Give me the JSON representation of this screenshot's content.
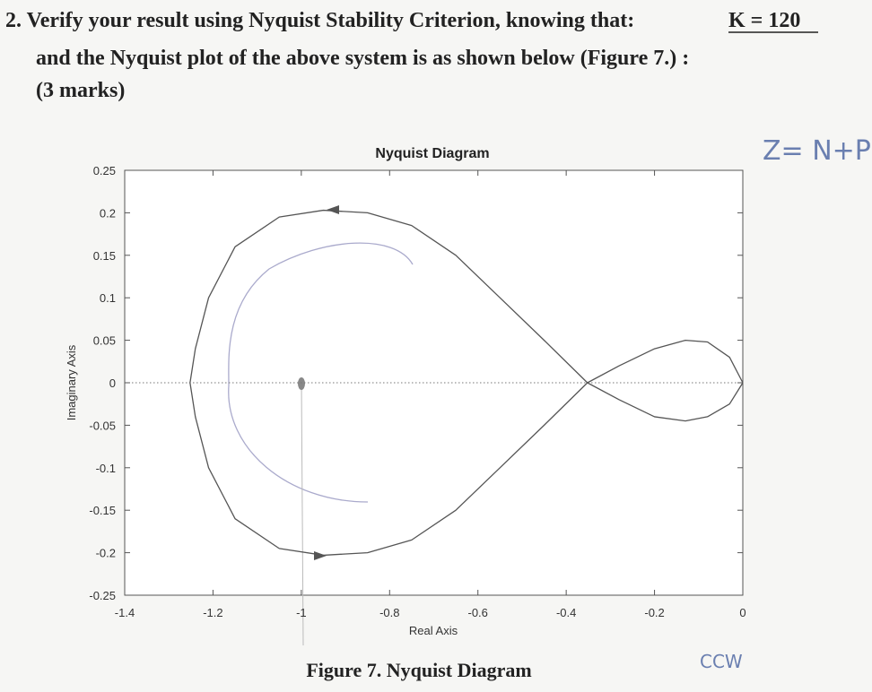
{
  "question": {
    "line1": "2. Verify your result using Nyquist Stability Criterion, knowing that:",
    "k": "K = 120",
    "line2": "and the Nyquist plot of the above system is as shown below (Figure 7.) :",
    "line3": "(3 marks)"
  },
  "notes": {
    "formula": "Z= N+P",
    "direction": "CCW"
  },
  "chart_data": {
    "type": "line",
    "title": "Nyquist Diagram",
    "xlabel": "Real Axis",
    "ylabel": "Imaginary Axis",
    "x": [
      0,
      -0.03,
      -0.08,
      -0.13,
      -0.2,
      -0.28,
      -0.352,
      -0.45,
      -0.55,
      -0.65,
      -0.75,
      -0.85,
      -0.95,
      -1.05,
      -1.15,
      -1.21,
      -1.24,
      -1.252,
      -1.24,
      -1.21,
      -1.15,
      -1.05,
      -0.95,
      -0.85,
      -0.75,
      -0.65,
      -0.55,
      -0.45,
      -0.352,
      -0.28,
      -0.2,
      -0.13,
      -0.08,
      -0.03,
      0
    ],
    "series": [
      {
        "color": "#555555",
        "values": [
          0,
          0.03,
          0.048,
          0.05,
          0.04,
          0.02,
          0,
          0.05,
          0.1,
          0.15,
          0.185,
          0.2,
          0.203,
          0.195,
          0.16,
          0.1,
          0.04,
          0,
          -0.04,
          -0.1,
          -0.16,
          -0.195,
          -0.203,
          -0.2,
          -0.185,
          -0.15,
          -0.1,
          -0.05,
          0,
          -0.02,
          -0.04,
          -0.045,
          -0.04,
          -0.025,
          0
        ]
      }
    ],
    "xlim": [
      -1.4,
      0
    ],
    "ylim": [
      -0.25,
      0.25
    ],
    "xticks": [
      -1.4,
      -1.2,
      -1,
      -0.8,
      -0.6,
      -0.4,
      -0.2,
      0
    ],
    "yticks": [
      -0.25,
      -0.2,
      -0.15,
      -0.1,
      -0.05,
      0,
      0.05,
      0.1,
      0.15,
      0.2,
      0.25
    ]
  },
  "caption": "Figure 7. Nyquist Diagram"
}
